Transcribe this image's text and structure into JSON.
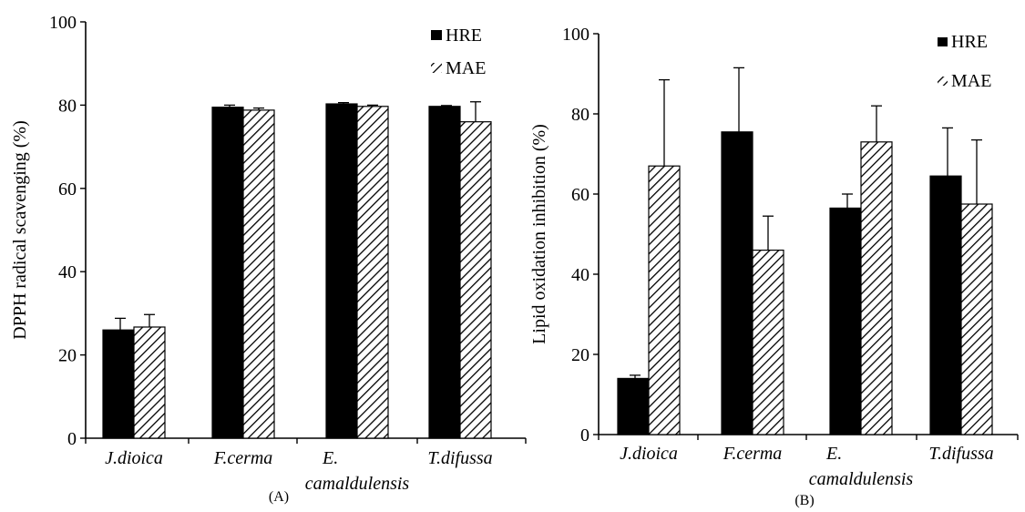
{
  "chart_data": [
    {
      "type": "bar",
      "panel_label": "(A)",
      "categories": [
        "J.dioica",
        "F.cerma",
        "E. camaldulensis",
        "T.difussa"
      ],
      "category_lines": [
        [
          "J.dioica"
        ],
        [
          "F.cerma"
        ],
        [
          "E.",
          "camaldulensis"
        ],
        [
          "T.difussa"
        ]
      ],
      "series": [
        {
          "name": "HRE",
          "values": [
            26,
            79.5,
            80.3,
            79.7
          ],
          "errors": [
            2.8,
            0.5,
            0.3,
            0.2
          ]
        },
        {
          "name": "MAE",
          "values": [
            26.7,
            78.8,
            79.7,
            76
          ],
          "errors": [
            3,
            0.5,
            0.3,
            4.8
          ]
        }
      ],
      "title": "",
      "xlabel": "",
      "ylabel": "DPPH radical scavenging (%)",
      "ylim": [
        0,
        100
      ],
      "yticks": [
        0,
        20,
        40,
        60,
        80,
        100
      ],
      "legend_position": "top-right",
      "grid": false
    },
    {
      "type": "bar",
      "panel_label": "(B)",
      "categories": [
        "J.dioica",
        "F.cerma",
        "E. camaldulensis",
        "T.difussa"
      ],
      "category_lines": [
        [
          "J.dioica"
        ],
        [
          "F.cerma"
        ],
        [
          "E.",
          "camaldulensis"
        ],
        [
          "T.difussa"
        ]
      ],
      "series": [
        {
          "name": "HRE",
          "values": [
            14,
            75.5,
            56.5,
            64.5
          ],
          "errors": [
            0.8,
            16,
            3.5,
            12
          ]
        },
        {
          "name": "MAE",
          "values": [
            67,
            46,
            73,
            57.5
          ],
          "errors": [
            21.5,
            8.5,
            9,
            16
          ]
        }
      ],
      "title": "",
      "xlabel": "",
      "ylabel": "Lipid oxidation inhibition (%)",
      "ylim": [
        0,
        100
      ],
      "yticks": [
        0,
        20,
        40,
        60,
        80,
        100
      ],
      "legend_position": "top-right",
      "grid": false
    }
  ]
}
